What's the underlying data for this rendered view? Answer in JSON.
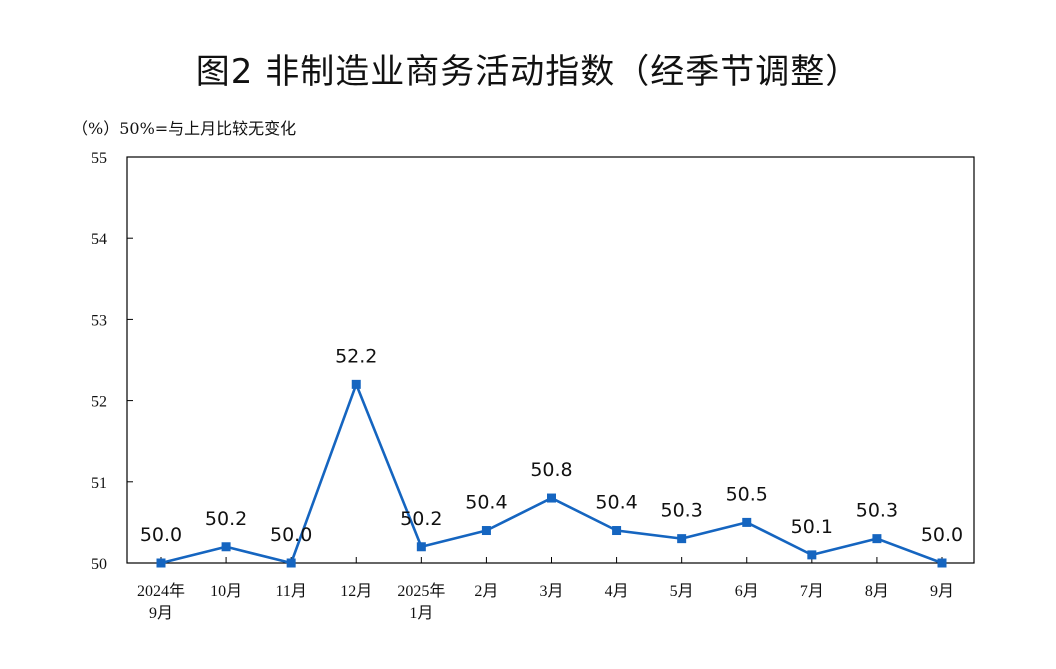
{
  "title": "图2  非制造业商务活动指数（经季节调整）",
  "unit_note": "（%）50%=与上月比较无变化",
  "colors": {
    "series": "#1565C0",
    "axis": "#000000",
    "text": "#111111"
  },
  "chart_data": {
    "type": "line",
    "title": "图2  非制造业商务活动指数（经季节调整）",
    "ylabel": "（%）50%=与上月比较无变化",
    "xlabel": "",
    "ylim": [
      50,
      55
    ],
    "yticks": [
      "50",
      "51",
      "52",
      "53",
      "54",
      "55"
    ],
    "grid": false,
    "categories": [
      [
        "2024年",
        "9月"
      ],
      [
        "10月"
      ],
      [
        "11月"
      ],
      [
        "12月"
      ],
      [
        "2025年",
        "1月"
      ],
      [
        "2月"
      ],
      [
        "3月"
      ],
      [
        "4月"
      ],
      [
        "5月"
      ],
      [
        "6月"
      ],
      [
        "7月"
      ],
      [
        "8月"
      ],
      [
        "9月"
      ]
    ],
    "series": [
      {
        "values": [
          50.0,
          50.2,
          50.0,
          52.2,
          50.2,
          50.4,
          50.8,
          50.4,
          50.3,
          50.5,
          50.1,
          50.3,
          50.0
        ],
        "labels": [
          "50.0",
          "50.2",
          "50.0",
          "52.2",
          "50.2",
          "50.4",
          "50.8",
          "50.4",
          "50.3",
          "50.5",
          "50.1",
          "50.3",
          "50.0"
        ],
        "marker": "square"
      }
    ]
  }
}
